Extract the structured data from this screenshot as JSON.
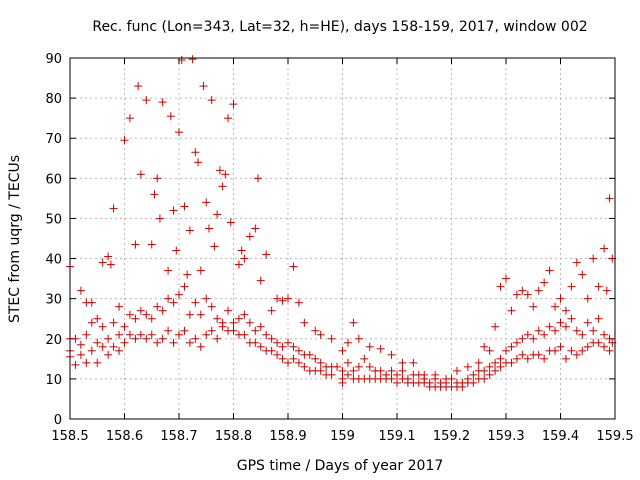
{
  "chart_data": {
    "type": "scatter",
    "title": "Rec. func (Lon=343, Lat=32, h=HE), days 158-159, 2017, window 002",
    "xlabel": "GPS time / Days of year 2017",
    "ylabel": "STEC from uqrg / TECUs",
    "xlim": [
      158.5,
      159.5
    ],
    "ylim": [
      0,
      90
    ],
    "xticks": [
      158.5,
      158.6,
      158.7,
      158.8,
      158.9,
      159,
      159.1,
      159.2,
      159.3,
      159.4,
      159.5
    ],
    "xtick_labels": [
      "158.5",
      "158.6",
      "158.7",
      "158.8",
      "158.9",
      "159",
      "159.1",
      "159.2",
      "159.3",
      "159.4",
      "159.5"
    ],
    "yticks": [
      0,
      10,
      20,
      30,
      40,
      50,
      60,
      70,
      80,
      90
    ],
    "ytick_labels": [
      "0",
      "10",
      "20",
      "30",
      "40",
      "50",
      "60",
      "70",
      "80",
      "90"
    ],
    "grid": true,
    "legend": "none",
    "marker": "plus",
    "series_color": "#cc0000",
    "points": [
      [
        158.5,
        38
      ],
      [
        158.51,
        20
      ],
      [
        158.52,
        32
      ],
      [
        158.53,
        29
      ],
      [
        158.54,
        29
      ],
      [
        158.55,
        25
      ],
      [
        158.56,
        39
      ],
      [
        158.57,
        40.5
      ],
      [
        158.575,
        38.5
      ],
      [
        158.58,
        52.5
      ],
      [
        158.59,
        28
      ],
      [
        158.6,
        69.5
      ],
      [
        158.61,
        75
      ],
      [
        158.62,
        43.5
      ],
      [
        158.625,
        83
      ],
      [
        158.63,
        61
      ],
      [
        158.64,
        79.5
      ],
      [
        158.65,
        43.5
      ],
      [
        158.655,
        56
      ],
      [
        158.66,
        60
      ],
      [
        158.665,
        50
      ],
      [
        158.67,
        79
      ],
      [
        158.68,
        37
      ],
      [
        158.685,
        75.5
      ],
      [
        158.69,
        52
      ],
      [
        158.695,
        42
      ],
      [
        158.7,
        71.5
      ],
      [
        158.705,
        89.5
      ],
      [
        158.71,
        53
      ],
      [
        158.715,
        36
      ],
      [
        158.72,
        47
      ],
      [
        158.725,
        89.7
      ],
      [
        158.73,
        66.5
      ],
      [
        158.735,
        64
      ],
      [
        158.74,
        37
      ],
      [
        158.745,
        83
      ],
      [
        158.75,
        54
      ],
      [
        158.755,
        47.5
      ],
      [
        158.76,
        79.5
      ],
      [
        158.765,
        43
      ],
      [
        158.77,
        51
      ],
      [
        158.775,
        62
      ],
      [
        158.78,
        58
      ],
      [
        158.785,
        61
      ],
      [
        158.79,
        75
      ],
      [
        158.795,
        49
      ],
      [
        158.8,
        78.5
      ],
      [
        158.81,
        38.5
      ],
      [
        158.815,
        42
      ],
      [
        158.82,
        40
      ],
      [
        158.83,
        45.5
      ],
      [
        158.84,
        47.5
      ],
      [
        158.845,
        60
      ],
      [
        158.85,
        34.5
      ],
      [
        158.86,
        41
      ],
      [
        158.87,
        27
      ],
      [
        158.88,
        30
      ],
      [
        158.89,
        29.5
      ],
      [
        158.9,
        30
      ],
      [
        158.91,
        38
      ],
      [
        158.92,
        29
      ],
      [
        158.93,
        24
      ],
      [
        158.95,
        22
      ],
      [
        158.96,
        21
      ],
      [
        158.98,
        20
      ],
      [
        159.0,
        17
      ],
      [
        159.01,
        19
      ],
      [
        159.02,
        24
      ],
      [
        159.03,
        20
      ],
      [
        159.05,
        18
      ],
      [
        159.07,
        17.5
      ],
      [
        159.09,
        16
      ],
      [
        159.11,
        14
      ],
      [
        159.13,
        14
      ],
      [
        159.15,
        11
      ],
      [
        159.17,
        11
      ],
      [
        159.19,
        10
      ],
      [
        159.21,
        12
      ],
      [
        159.23,
        13
      ],
      [
        159.25,
        14
      ],
      [
        159.26,
        18
      ],
      [
        159.27,
        17
      ],
      [
        159.28,
        23
      ],
      [
        159.29,
        33
      ],
      [
        159.3,
        35
      ],
      [
        159.31,
        27
      ],
      [
        159.32,
        31
      ],
      [
        159.33,
        32
      ],
      [
        159.34,
        31
      ],
      [
        159.35,
        28
      ],
      [
        159.36,
        32
      ],
      [
        159.37,
        34
      ],
      [
        159.38,
        37
      ],
      [
        159.39,
        28
      ],
      [
        159.4,
        30
      ],
      [
        159.41,
        27
      ],
      [
        159.42,
        33
      ],
      [
        159.43,
        39
      ],
      [
        159.44,
        36
      ],
      [
        159.45,
        30
      ],
      [
        159.46,
        40
      ],
      [
        159.47,
        33
      ],
      [
        159.48,
        42.5
      ],
      [
        159.485,
        32
      ],
      [
        159.49,
        55
      ],
      [
        159.495,
        40
      ],
      [
        158.5,
        20
      ],
      [
        158.5,
        17
      ],
      [
        158.5,
        15.5
      ],
      [
        158.51,
        13.5
      ],
      [
        158.52,
        18.5
      ],
      [
        158.52,
        16
      ],
      [
        158.53,
        21
      ],
      [
        158.53,
        14
      ],
      [
        158.54,
        24
      ],
      [
        158.54,
        17
      ],
      [
        158.55,
        19
      ],
      [
        158.55,
        14
      ],
      [
        158.56,
        23
      ],
      [
        158.56,
        18
      ],
      [
        158.57,
        20
      ],
      [
        158.57,
        16
      ],
      [
        158.58,
        24
      ],
      [
        158.58,
        18
      ],
      [
        158.59,
        21
      ],
      [
        158.59,
        17
      ],
      [
        158.6,
        23
      ],
      [
        158.6,
        19
      ],
      [
        158.61,
        26
      ],
      [
        158.61,
        21
      ],
      [
        158.62,
        25
      ],
      [
        158.62,
        20
      ],
      [
        158.63,
        27
      ],
      [
        158.63,
        21
      ],
      [
        158.64,
        26
      ],
      [
        158.64,
        20
      ],
      [
        158.65,
        25
      ],
      [
        158.65,
        21
      ],
      [
        158.66,
        28
      ],
      [
        158.66,
        19
      ],
      [
        158.67,
        27
      ],
      [
        158.67,
        20
      ],
      [
        158.68,
        30
      ],
      [
        158.68,
        22
      ],
      [
        158.69,
        29
      ],
      [
        158.69,
        19
      ],
      [
        158.7,
        31
      ],
      [
        158.7,
        21
      ],
      [
        158.71,
        33
      ],
      [
        158.71,
        22
      ],
      [
        158.72,
        26
      ],
      [
        158.72,
        19
      ],
      [
        158.73,
        29
      ],
      [
        158.73,
        20
      ],
      [
        158.74,
        26
      ],
      [
        158.74,
        18
      ],
      [
        158.75,
        30
      ],
      [
        158.75,
        21
      ],
      [
        158.76,
        28
      ],
      [
        158.76,
        22
      ],
      [
        158.77,
        25
      ],
      [
        158.77,
        20
      ],
      [
        158.78,
        24
      ],
      [
        158.78,
        23
      ],
      [
        158.79,
        27
      ],
      [
        158.79,
        22
      ],
      [
        158.8,
        24
      ],
      [
        158.8,
        22
      ],
      [
        158.81,
        25
      ],
      [
        158.81,
        21
      ],
      [
        158.82,
        26
      ],
      [
        158.82,
        21
      ],
      [
        158.83,
        24
      ],
      [
        158.83,
        19
      ],
      [
        158.84,
        22
      ],
      [
        158.84,
        19
      ],
      [
        158.85,
        23
      ],
      [
        158.85,
        18
      ],
      [
        158.86,
        21
      ],
      [
        158.86,
        17
      ],
      [
        158.87,
        20
      ],
      [
        158.87,
        17
      ],
      [
        158.88,
        19
      ],
      [
        158.88,
        16
      ],
      [
        158.89,
        18
      ],
      [
        158.89,
        15
      ],
      [
        158.9,
        19
      ],
      [
        158.9,
        14
      ],
      [
        158.91,
        18
      ],
      [
        158.91,
        15
      ],
      [
        158.92,
        17
      ],
      [
        158.92,
        14
      ],
      [
        158.93,
        16
      ],
      [
        158.93,
        13
      ],
      [
        158.94,
        16
      ],
      [
        158.94,
        12
      ],
      [
        158.95,
        15
      ],
      [
        158.95,
        12
      ],
      [
        158.96,
        14
      ],
      [
        158.96,
        12
      ],
      [
        158.97,
        13
      ],
      [
        158.97,
        11
      ],
      [
        158.98,
        13
      ],
      [
        158.98,
        11
      ],
      [
        158.99,
        13
      ],
      [
        159.0,
        12
      ],
      [
        159.0,
        10
      ],
      [
        159.0,
        9
      ],
      [
        159.01,
        14
      ],
      [
        159.01,
        11
      ],
      [
        159.02,
        12
      ],
      [
        159.02,
        10
      ],
      [
        159.03,
        13
      ],
      [
        159.03,
        10
      ],
      [
        159.04,
        15
      ],
      [
        159.04,
        10
      ],
      [
        159.05,
        13
      ],
      [
        159.05,
        10
      ],
      [
        159.06,
        12
      ],
      [
        159.06,
        10
      ],
      [
        159.07,
        12
      ],
      [
        159.07,
        10
      ],
      [
        159.08,
        11
      ],
      [
        159.08,
        10
      ],
      [
        159.09,
        12
      ],
      [
        159.09,
        10
      ],
      [
        159.1,
        11
      ],
      [
        159.1,
        9
      ],
      [
        159.11,
        12
      ],
      [
        159.11,
        10
      ],
      [
        159.12,
        10
      ],
      [
        159.12,
        9
      ],
      [
        159.13,
        11
      ],
      [
        159.13,
        9
      ],
      [
        159.14,
        11
      ],
      [
        159.14,
        9
      ],
      [
        159.15,
        10
      ],
      [
        159.15,
        9
      ],
      [
        159.16,
        9
      ],
      [
        159.16,
        8
      ],
      [
        159.17,
        10
      ],
      [
        159.17,
        8
      ],
      [
        159.18,
        9
      ],
      [
        159.18,
        8
      ],
      [
        159.19,
        9
      ],
      [
        159.19,
        8
      ],
      [
        159.2,
        10
      ],
      [
        159.2,
        8
      ],
      [
        159.21,
        9
      ],
      [
        159.21,
        8
      ],
      [
        159.22,
        9
      ],
      [
        159.22,
        8
      ],
      [
        159.23,
        10
      ],
      [
        159.23,
        9
      ],
      [
        159.24,
        11
      ],
      [
        159.24,
        9
      ],
      [
        159.25,
        12
      ],
      [
        159.25,
        10
      ],
      [
        159.26,
        12
      ],
      [
        159.26,
        10
      ],
      [
        159.27,
        13
      ],
      [
        159.27,
        11
      ],
      [
        159.28,
        14
      ],
      [
        159.28,
        12
      ],
      [
        159.29,
        15
      ],
      [
        159.29,
        13
      ],
      [
        159.3,
        17
      ],
      [
        159.3,
        14
      ],
      [
        159.31,
        18
      ],
      [
        159.31,
        14
      ],
      [
        159.32,
        19
      ],
      [
        159.32,
        15
      ],
      [
        159.33,
        20
      ],
      [
        159.33,
        16
      ],
      [
        159.34,
        21
      ],
      [
        159.34,
        15
      ],
      [
        159.35,
        20
      ],
      [
        159.35,
        16
      ],
      [
        159.36,
        22
      ],
      [
        159.36,
        16
      ],
      [
        159.37,
        21
      ],
      [
        159.37,
        15
      ],
      [
        159.38,
        23
      ],
      [
        159.38,
        17
      ],
      [
        159.39,
        22
      ],
      [
        159.39,
        17
      ],
      [
        159.4,
        24
      ],
      [
        159.4,
        18
      ],
      [
        159.41,
        23
      ],
      [
        159.41,
        15
      ],
      [
        159.42,
        25
      ],
      [
        159.42,
        17
      ],
      [
        159.43,
        22
      ],
      [
        159.43,
        16
      ],
      [
        159.44,
        21
      ],
      [
        159.44,
        17
      ],
      [
        159.45,
        24
      ],
      [
        159.45,
        18
      ],
      [
        159.46,
        22
      ],
      [
        159.46,
        19
      ],
      [
        159.47,
        25
      ],
      [
        159.47,
        19
      ],
      [
        159.48,
        21
      ],
      [
        159.48,
        18
      ],
      [
        159.49,
        20
      ],
      [
        159.49,
        17
      ],
      [
        159.495,
        19
      ]
    ]
  }
}
